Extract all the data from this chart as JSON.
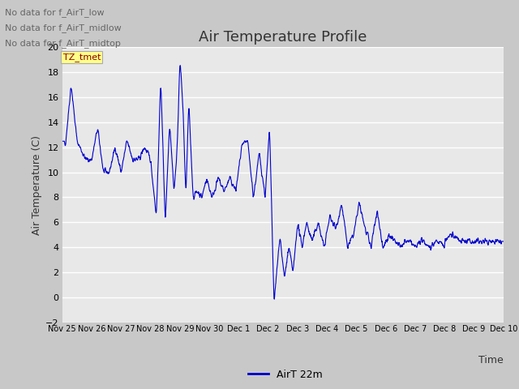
{
  "title": "Air Temperature Profile",
  "ylabel": "Air Temperature (C)",
  "xlabel": "Time",
  "legend_label": "AirT 22m",
  "ylim": [
    -2,
    20
  ],
  "yticks": [
    -2,
    0,
    2,
    4,
    6,
    8,
    10,
    12,
    14,
    16,
    18,
    20
  ],
  "line_color": "#0000CC",
  "fig_bg_color": "#C8C8C8",
  "plot_bg_color": "#E8E8E8",
  "grid_color": "#FFFFFF",
  "annotations": [
    "No data for f_AirT_low",
    "No data for f_AirT_midlow",
    "No data for f_AirT_midtop"
  ],
  "tz_label": "TZ_tmet",
  "x_tick_labels": [
    "Nov 25",
    "Nov 26",
    "Nov 27",
    "Nov 28",
    "Nov 29",
    "Nov 30",
    "Dec 1",
    "Dec 2",
    "Dec 3",
    "Dec 4",
    "Dec 5",
    "Dec 6",
    "Dec 7",
    "Dec 8",
    "Dec 9",
    "Dec 10"
  ],
  "title_fontsize": 13,
  "label_fontsize": 9,
  "tick_fontsize": 8,
  "annotation_fontsize": 8,
  "legend_fontsize": 9
}
